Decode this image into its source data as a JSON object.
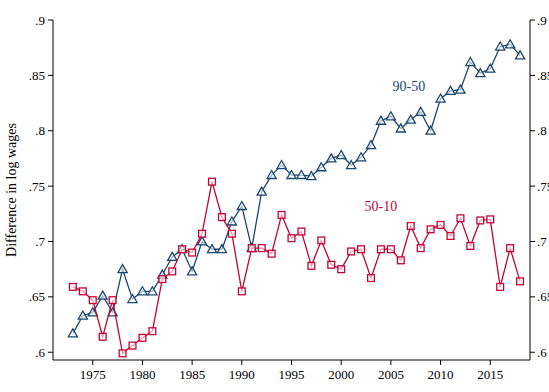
{
  "chart_data": {
    "type": "line",
    "y_label": "Difference in log wages",
    "x": [
      1973,
      1974,
      1975,
      1976,
      1977,
      1978,
      1979,
      1980,
      1981,
      1982,
      1983,
      1984,
      1985,
      1986,
      1987,
      1988,
      1989,
      1990,
      1991,
      1992,
      1993,
      1994,
      1995,
      1996,
      1997,
      1998,
      1999,
      2000,
      2001,
      2002,
      2003,
      2004,
      2005,
      2006,
      2007,
      2008,
      2009,
      2010,
      2011,
      2012,
      2013,
      2014,
      2015,
      2016,
      2017,
      2018
    ],
    "series": [
      {
        "name": "90-50",
        "color": "#1a476f",
        "marker": "triangle",
        "line_style": "solid",
        "values": [
          0.617,
          0.633,
          0.636,
          0.651,
          0.636,
          0.675,
          0.648,
          0.655,
          0.655,
          0.67,
          0.686,
          0.693,
          0.673,
          0.7,
          0.693,
          0.693,
          0.718,
          0.732,
          0.694,
          0.745,
          0.76,
          0.769,
          0.76,
          0.76,
          0.759,
          0.767,
          0.775,
          0.778,
          0.769,
          0.776,
          0.787,
          0.809,
          0.813,
          0.802,
          0.81,
          0.817,
          0.8,
          0.829,
          0.836,
          0.837,
          0.862,
          0.852,
          0.856,
          0.876,
          0.878,
          0.868
        ]
      },
      {
        "name": "50-10",
        "color": "#c10534",
        "marker": "square",
        "line_style": "solid",
        "values": [
          0.659,
          0.655,
          0.647,
          0.614,
          0.647,
          0.599,
          0.606,
          0.613,
          0.619,
          0.666,
          0.673,
          0.693,
          0.69,
          0.707,
          0.754,
          0.722,
          0.707,
          0.655,
          0.694,
          0.694,
          0.689,
          0.724,
          0.703,
          0.709,
          0.678,
          0.701,
          0.679,
          0.675,
          0.691,
          0.693,
          0.667,
          0.693,
          0.693,
          0.683,
          0.714,
          0.694,
          0.711,
          0.715,
          0.705,
          0.721,
          0.696,
          0.719,
          0.72,
          0.659,
          0.694,
          0.664
        ]
      }
    ],
    "xlim": [
      1971,
      2019
    ],
    "xticks": [
      1975,
      1980,
      1985,
      1990,
      1995,
      2000,
      2005,
      2010,
      2015
    ],
    "ylim": [
      0.593,
      0.9
    ],
    "yticks": [
      {
        "value": 0.6,
        "label": ".6"
      },
      {
        "value": 0.65,
        "label": ".65"
      },
      {
        "value": 0.7,
        "label": ".7"
      },
      {
        "value": 0.75,
        "label": ".75"
      },
      {
        "value": 0.8,
        "label": ".8"
      },
      {
        "value": 0.85,
        "label": ".85"
      },
      {
        "value": 0.9,
        "label": ".9"
      }
    ],
    "y2lim": [
      0.593,
      0.9
    ],
    "y2ticks": [
      {
        "value": 0.6,
        "label": ".6"
      },
      {
        "value": 0.65,
        "label": ".65"
      },
      {
        "value": 0.7,
        "label": ".7"
      },
      {
        "value": 0.75,
        "label": ".75"
      },
      {
        "value": 0.8,
        "label": ".8"
      },
      {
        "value": 0.85,
        "label": ".85"
      },
      {
        "value": 0.9,
        "label": ".9"
      }
    ],
    "grid": false
  }
}
